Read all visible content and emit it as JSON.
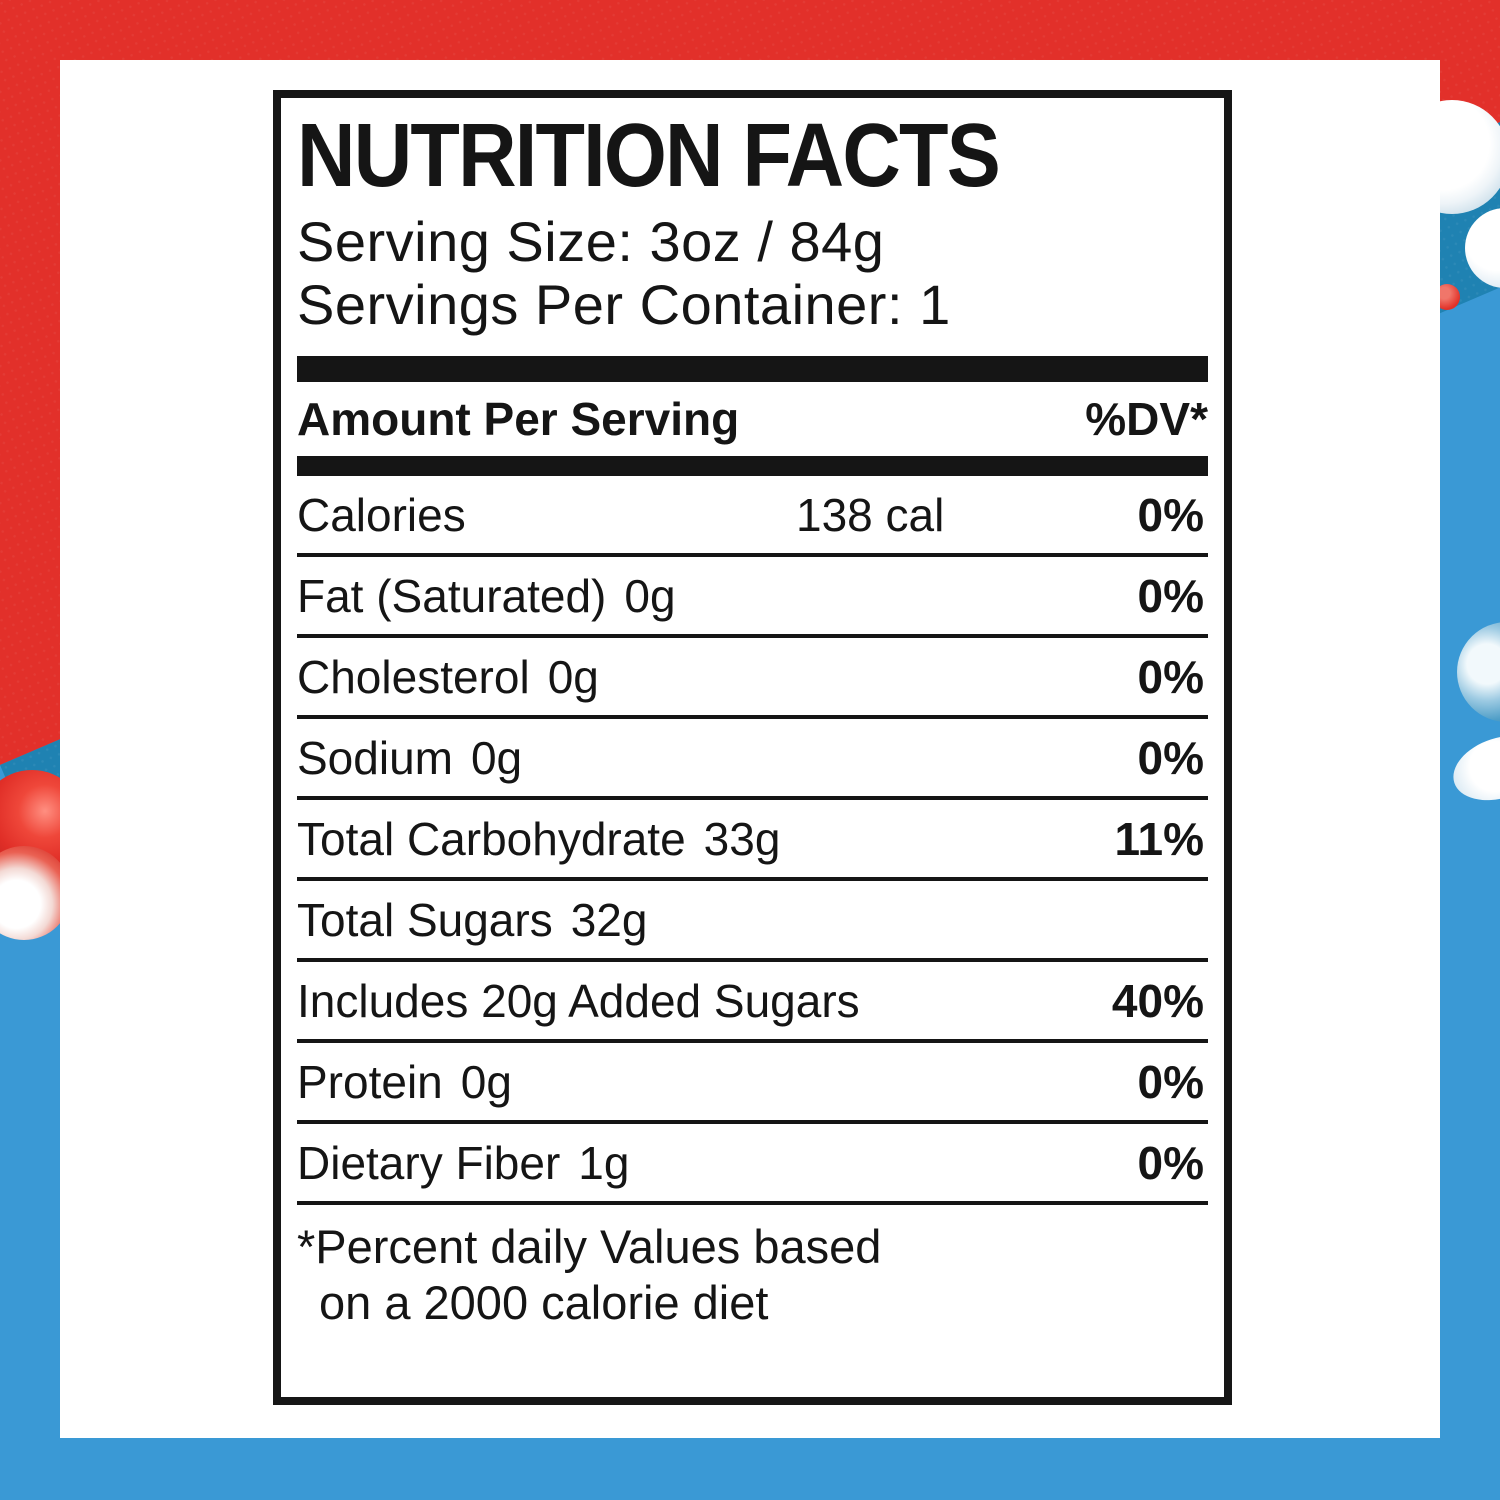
{
  "palette": {
    "background_red": "#e2302a",
    "background_teal_band": "#1f82b2",
    "background_light_blue": "#3a99d5",
    "card_white": "#ffffff",
    "label_text_black": "#151515"
  },
  "label": {
    "title": "NUTRITION FACTS",
    "serving_size_line": "Serving Size: 3oz / 84g",
    "servings_per_container_line": "Servings Per Container: 1",
    "amount_header": "Amount Per Serving",
    "dv_header": "%DV*",
    "rows": [
      {
        "name": "Calories",
        "mid": "138 cal",
        "dv": "0%"
      },
      {
        "name": "Fat (Saturated)",
        "amount": "0g",
        "dv": "0%"
      },
      {
        "name": "Cholesterol",
        "amount": "0g",
        "dv": "0%"
      },
      {
        "name": "Sodium",
        "amount": "0g",
        "dv": "0%"
      },
      {
        "name": "Total Carbohydrate",
        "amount": "33g",
        "dv": "11%"
      },
      {
        "name": "Total Sugars",
        "amount": "32g",
        "dv": ""
      },
      {
        "name": "Includes 20g Added Sugars",
        "amount": "",
        "dv": "40%"
      },
      {
        "name": "Protein",
        "amount": "0g",
        "dv": "0%"
      },
      {
        "name": "Dietary Fiber",
        "amount": "1g",
        "dv": "0%"
      }
    ],
    "footnote_line1": "*Percent daily Values based",
    "footnote_line2": "on a 2000 calorie diet"
  },
  "decor": {
    "spheres": [
      "red-candy-sphere",
      "red-candy-sphere-shine",
      "white-candy-sphere",
      "white-candy-sphere-partial",
      "blue-gloss-sphere",
      "white-ellipse-highlight",
      "small-red-candy"
    ]
  }
}
